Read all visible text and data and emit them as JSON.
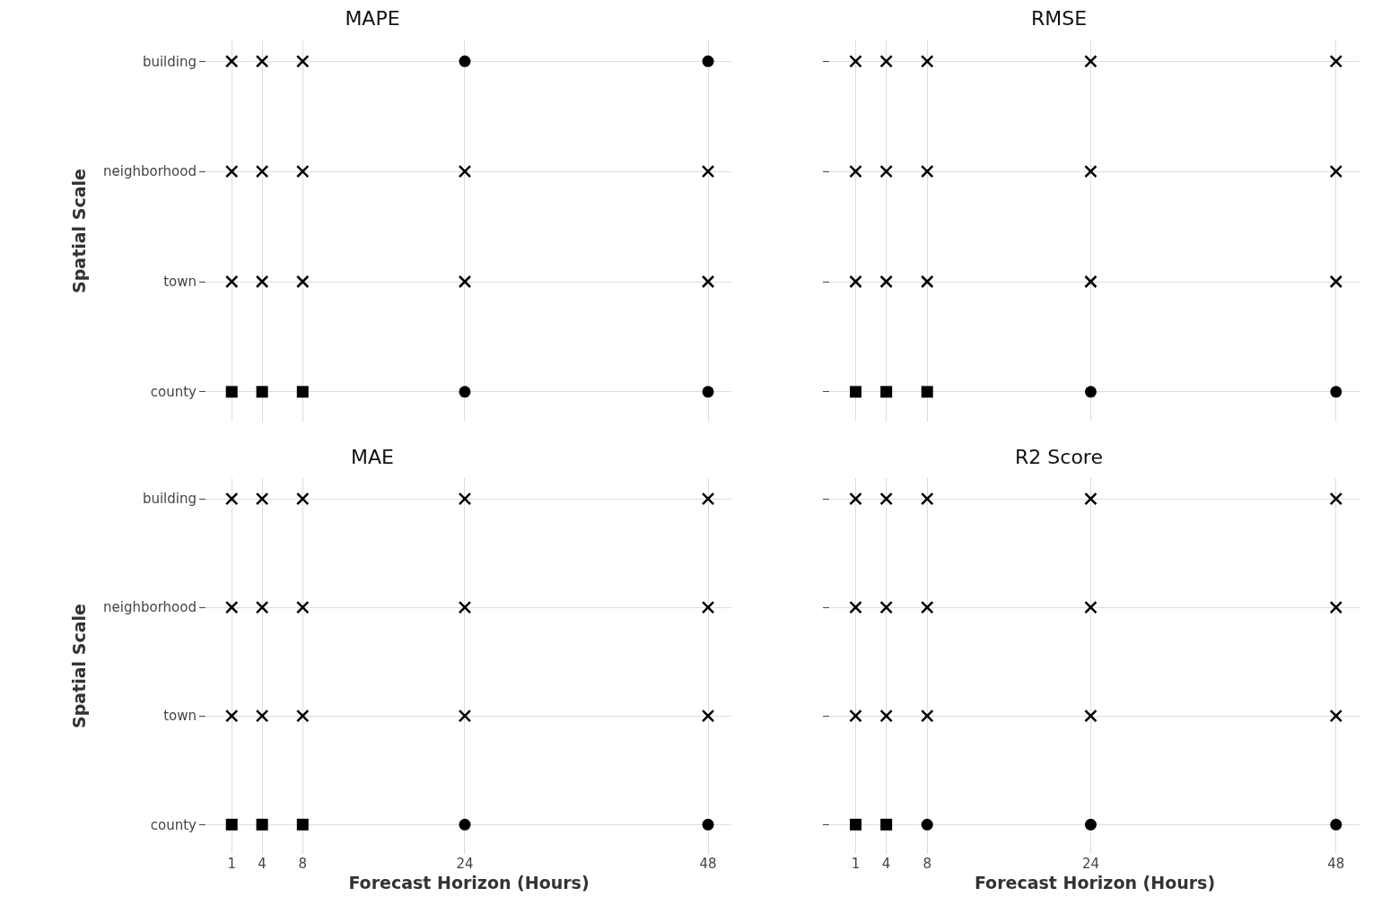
{
  "chart_data": [
    {
      "type": "scatter",
      "orientation": "horizontal",
      "title": "MAPE",
      "ylabel": "Spatial Scale",
      "categories": [
        "building",
        "neighborhood",
        "town",
        "county"
      ],
      "xlim": [
        -1.5,
        50.3
      ],
      "xticks": [
        1,
        4,
        8,
        24,
        48
      ],
      "grid": true,
      "tick_labels": "y",
      "series": [
        {
          "color": "#000000",
          "marker": "cross",
          "values": [
            1,
            1,
            1,
            null
          ]
        },
        {
          "color": "#000000",
          "marker": "square",
          "values": [
            null,
            null,
            null,
            1
          ]
        },
        {
          "color": "#000000",
          "marker": "cross",
          "values": [
            4,
            4,
            4,
            null
          ]
        },
        {
          "color": "#000000",
          "marker": "square",
          "values": [
            null,
            null,
            null,
            4
          ]
        },
        {
          "color": "#000000",
          "marker": "cross",
          "values": [
            8,
            8,
            8,
            null
          ]
        },
        {
          "color": "#000000",
          "marker": "square",
          "values": [
            null,
            null,
            null,
            8
          ]
        },
        {
          "color": "#000000",
          "marker": "cross",
          "values": [
            null,
            24,
            24,
            null
          ]
        },
        {
          "color": "#000000",
          "marker": "circle",
          "values": [
            24,
            null,
            null,
            24
          ]
        },
        {
          "color": "#000000",
          "marker": "cross",
          "values": [
            null,
            48,
            48,
            null
          ]
        },
        {
          "color": "#000000",
          "marker": "circle",
          "values": [
            48,
            null,
            null,
            48
          ]
        }
      ]
    },
    {
      "type": "scatter",
      "orientation": "horizontal",
      "title": "RMSE",
      "categories": [
        null,
        null,
        null,
        null
      ],
      "xlim": [
        -1.5,
        50.3
      ],
      "xticks": [
        1,
        4,
        8,
        24,
        48
      ],
      "grid": true,
      "tick_labels": false,
      "series": [
        {
          "color": "#000000",
          "marker": "cross",
          "values": [
            1,
            1,
            1,
            null
          ]
        },
        {
          "color": "#000000",
          "marker": "square",
          "values": [
            null,
            null,
            null,
            1
          ]
        },
        {
          "color": "#000000",
          "marker": "cross",
          "values": [
            4,
            4,
            4,
            null
          ]
        },
        {
          "color": "#000000",
          "marker": "square",
          "values": [
            null,
            null,
            null,
            4
          ]
        },
        {
          "color": "#000000",
          "marker": "cross",
          "values": [
            8,
            8,
            8,
            null
          ]
        },
        {
          "color": "#000000",
          "marker": "square",
          "values": [
            null,
            null,
            null,
            8
          ]
        },
        {
          "color": "#000000",
          "marker": "cross",
          "values": [
            24,
            24,
            24,
            null
          ]
        },
        {
          "color": "#000000",
          "marker": "circle",
          "values": [
            null,
            null,
            null,
            24
          ]
        },
        {
          "color": "#000000",
          "marker": "cross",
          "values": [
            48,
            48,
            48,
            null
          ]
        },
        {
          "color": "#000000",
          "marker": "circle",
          "values": [
            null,
            null,
            null,
            48
          ]
        }
      ]
    },
    {
      "type": "scatter",
      "orientation": "horizontal",
      "title": "MAE",
      "xlabel": "Forecast Horizon (Hours)",
      "ylabel": "Spatial Scale",
      "categories": [
        "building",
        "neighborhood",
        "town",
        "county"
      ],
      "xlim": [
        -1.5,
        50.3
      ],
      "xticks": [
        1,
        4,
        8,
        24,
        48
      ],
      "grid": true,
      "series": [
        {
          "color": "#000000",
          "marker": "cross",
          "values": [
            1,
            1,
            1,
            null
          ]
        },
        {
          "color": "#000000",
          "marker": "square",
          "values": [
            null,
            null,
            null,
            1
          ]
        },
        {
          "color": "#000000",
          "marker": "cross",
          "values": [
            4,
            4,
            4,
            null
          ]
        },
        {
          "color": "#000000",
          "marker": "square",
          "values": [
            null,
            null,
            null,
            4
          ]
        },
        {
          "color": "#000000",
          "marker": "cross",
          "values": [
            8,
            8,
            8,
            null
          ]
        },
        {
          "color": "#000000",
          "marker": "square",
          "values": [
            null,
            null,
            null,
            8
          ]
        },
        {
          "color": "#000000",
          "marker": "cross",
          "values": [
            24,
            24,
            24,
            null
          ]
        },
        {
          "color": "#000000",
          "marker": "circle",
          "values": [
            null,
            null,
            null,
            24
          ]
        },
        {
          "color": "#000000",
          "marker": "cross",
          "values": [
            48,
            48,
            48,
            null
          ]
        },
        {
          "color": "#000000",
          "marker": "circle",
          "values": [
            null,
            null,
            null,
            48
          ]
        }
      ]
    },
    {
      "type": "scatter",
      "orientation": "horizontal",
      "title": "R2 Score",
      "xlabel": "Forecast Horizon (Hours)",
      "categories": [
        null,
        null,
        null,
        null
      ],
      "xlim": [
        -1.5,
        50.3
      ],
      "xticks": [
        1,
        4,
        8,
        24,
        48
      ],
      "grid": true,
      "tick_labels": "x",
      "series": [
        {
          "color": "#000000",
          "marker": "cross",
          "values": [
            1,
            1,
            1,
            null
          ]
        },
        {
          "color": "#000000",
          "marker": "square",
          "values": [
            null,
            null,
            null,
            1
          ]
        },
        {
          "color": "#000000",
          "marker": "cross",
          "values": [
            4,
            4,
            4,
            null
          ]
        },
        {
          "color": "#000000",
          "marker": "square",
          "values": [
            null,
            null,
            null,
            4
          ]
        },
        {
          "color": "#000000",
          "marker": "cross",
          "values": [
            8,
            8,
            8,
            null
          ]
        },
        {
          "color": "#000000",
          "marker": "circle",
          "values": [
            null,
            null,
            null,
            8
          ]
        },
        {
          "color": "#000000",
          "marker": "cross",
          "values": [
            24,
            24,
            24,
            null
          ]
        },
        {
          "color": "#000000",
          "marker": "circle",
          "values": [
            null,
            null,
            null,
            24
          ]
        },
        {
          "color": "#000000",
          "marker": "cross",
          "values": [
            48,
            48,
            48,
            null
          ]
        },
        {
          "color": "#000000",
          "marker": "circle",
          "values": [
            null,
            null,
            null,
            48
          ]
        }
      ]
    }
  ]
}
